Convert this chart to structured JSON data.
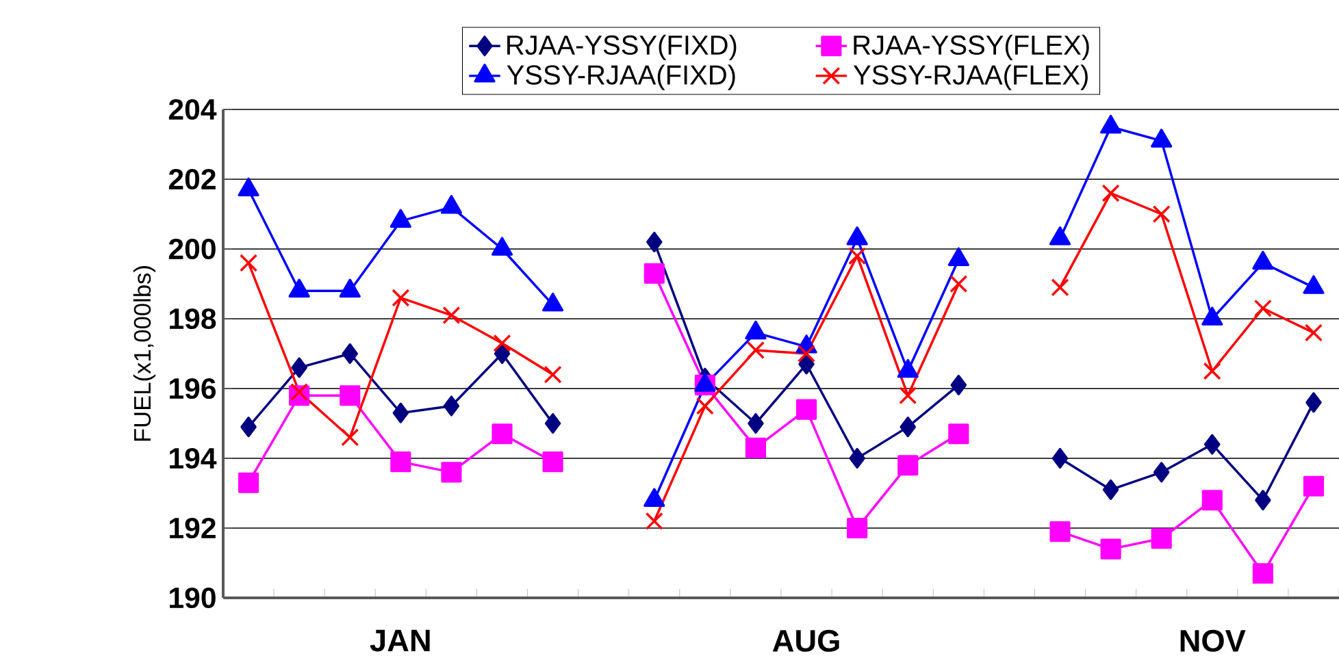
{
  "chart_data": {
    "type": "line",
    "ylabel": "FUEL(x1,000lbs)",
    "categories": [
      null,
      null,
      null,
      "JAN",
      null,
      null,
      null,
      null,
      null,
      null,
      null,
      "AUG",
      null,
      null,
      null,
      null,
      null,
      null,
      null,
      "NOV",
      null,
      null
    ],
    "ylim": [
      190,
      204
    ],
    "yticks": [
      190,
      192,
      194,
      196,
      198,
      200,
      202,
      204
    ],
    "grid": "y",
    "legend": "top",
    "series": [
      {
        "name": "RJAA-YSSY(FIXD)",
        "color": "#000080",
        "marker": "diamond",
        "values": [
          194.9,
          196.6,
          197.0,
          195.3,
          195.5,
          197.0,
          195.0,
          null,
          200.2,
          196.3,
          195.0,
          196.7,
          194.0,
          194.9,
          196.1,
          null,
          194.0,
          193.1,
          193.6,
          194.4,
          192.8,
          195.6
        ]
      },
      {
        "name": "RJAA-YSSY(FLEX)",
        "color": "#ff00ff",
        "marker": "square",
        "values": [
          193.3,
          195.8,
          195.8,
          193.9,
          193.6,
          194.7,
          193.9,
          null,
          199.3,
          196.1,
          194.3,
          195.4,
          192.0,
          193.8,
          194.7,
          null,
          191.9,
          191.4,
          191.7,
          192.8,
          190.7,
          193.2
        ]
      },
      {
        "name": "YSSY-RJAA(FIXD)",
        "color": "#0000ff",
        "marker": "triangle",
        "values": [
          201.7,
          198.8,
          198.8,
          200.8,
          201.2,
          200.0,
          198.4,
          null,
          192.8,
          196.1,
          197.6,
          197.2,
          200.3,
          196.5,
          199.7,
          null,
          200.3,
          203.5,
          203.1,
          198.0,
          199.6,
          198.9
        ]
      },
      {
        "name": "YSSY-RJAA(FLEX)",
        "color": "#ff0000",
        "marker": "cross",
        "values": [
          199.6,
          195.9,
          194.6,
          198.6,
          198.1,
          197.3,
          196.4,
          null,
          192.2,
          195.5,
          197.1,
          197.0,
          199.8,
          195.8,
          199.0,
          null,
          198.9,
          201.6,
          201.0,
          196.5,
          198.3,
          197.6
        ]
      }
    ]
  }
}
